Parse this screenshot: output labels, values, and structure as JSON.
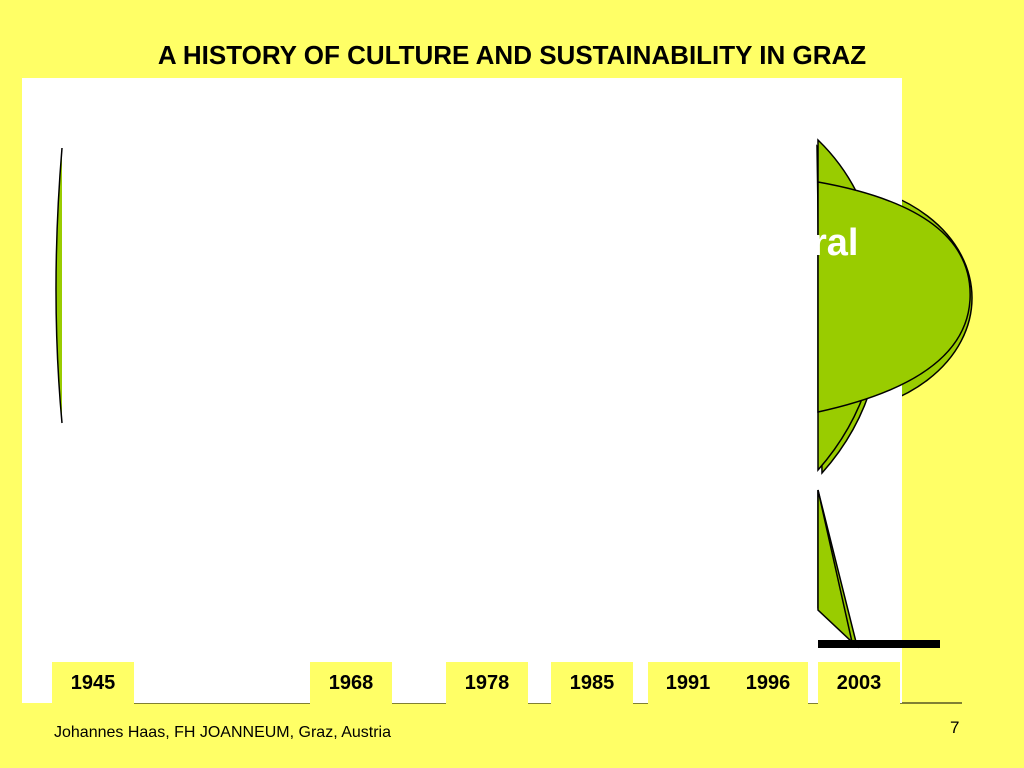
{
  "slide": {
    "title": "A HISTORY OF CULTURE AND SUSTAINABILITY IN GRAZ",
    "partial_label": "ral",
    "footer_author": "Johannes Haas, FH JOANNEUM, Graz, Austria",
    "page_number": "7"
  },
  "timeline": {
    "years": [
      "1945",
      "1968",
      "1978",
      "1985",
      "1991",
      "1996",
      "2003"
    ]
  },
  "colors": {
    "background": "#ffff66",
    "shape_fill": "#99cc00",
    "panel": "#ffffff",
    "timeline_bar": "#000000"
  }
}
